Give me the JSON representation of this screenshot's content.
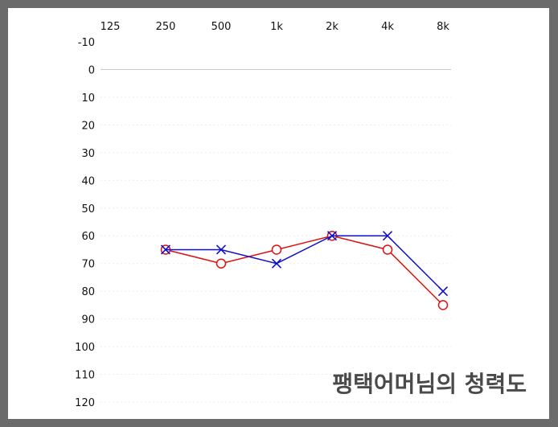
{
  "chart_data": {
    "type": "line",
    "title": "",
    "xlabel": "",
    "ylabel": "",
    "categories": [
      "125",
      "250",
      "500",
      "1k",
      "2k",
      "4k",
      "8k"
    ],
    "yticks": [
      -10,
      0,
      10,
      20,
      30,
      40,
      50,
      60,
      70,
      80,
      90,
      100,
      110,
      120
    ],
    "ylim": [
      -10,
      120
    ],
    "y_inverted": true,
    "x_axis_position": "top",
    "grid": "horizontal dotted",
    "series": [
      {
        "color": "#e01010",
        "marker": "circle",
        "values": [
          null,
          65,
          70,
          65,
          60,
          65,
          85
        ]
      },
      {
        "color": "#1010c8",
        "marker": "x",
        "values": [
          null,
          65,
          65,
          70,
          60,
          60,
          80
        ]
      }
    ],
    "annotation": "팽택어머님의  청력도"
  }
}
